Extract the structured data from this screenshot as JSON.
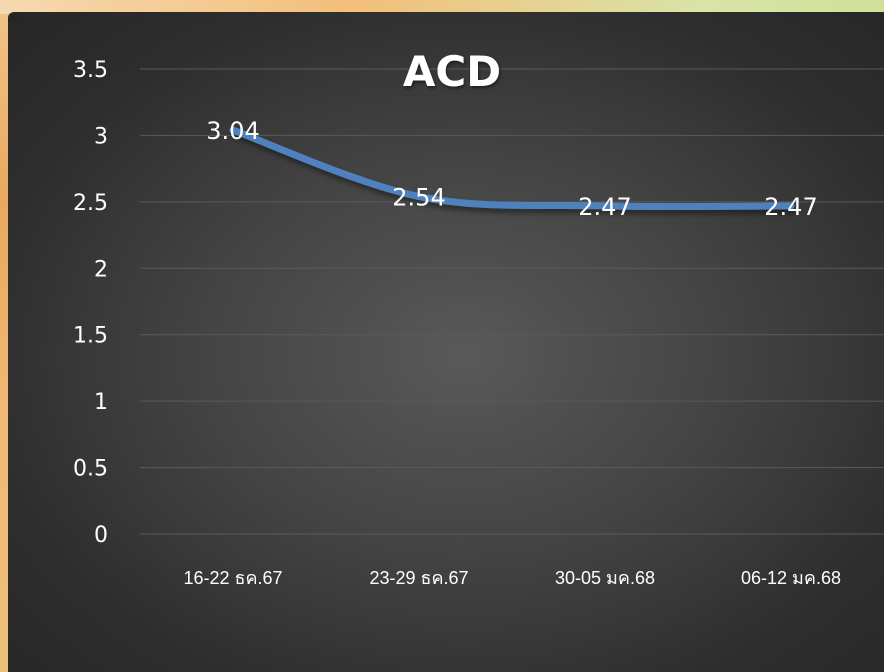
{
  "chart_data": {
    "type": "line",
    "title": "ACD",
    "categories": [
      "16-22 ธค.67",
      "23-29 ธค.67",
      "30-05 มค.68",
      "06-12 มค.68"
    ],
    "series": [
      {
        "values": [
          3.04,
          2.54,
          2.47,
          2.47
        ]
      }
    ],
    "data_labels": [
      "3.04",
      "2.54",
      "2.47",
      "2.47"
    ],
    "y_ticks": [
      "0",
      "0.5",
      "1",
      "1.5",
      "2",
      "2.5",
      "3",
      "3.5"
    ],
    "ylim": [
      0,
      3.5
    ],
    "grid": true,
    "legend": "none",
    "colors": {
      "line": "#4f81bd",
      "gridline": "#5a5a5a",
      "text": "#ffffff"
    }
  }
}
